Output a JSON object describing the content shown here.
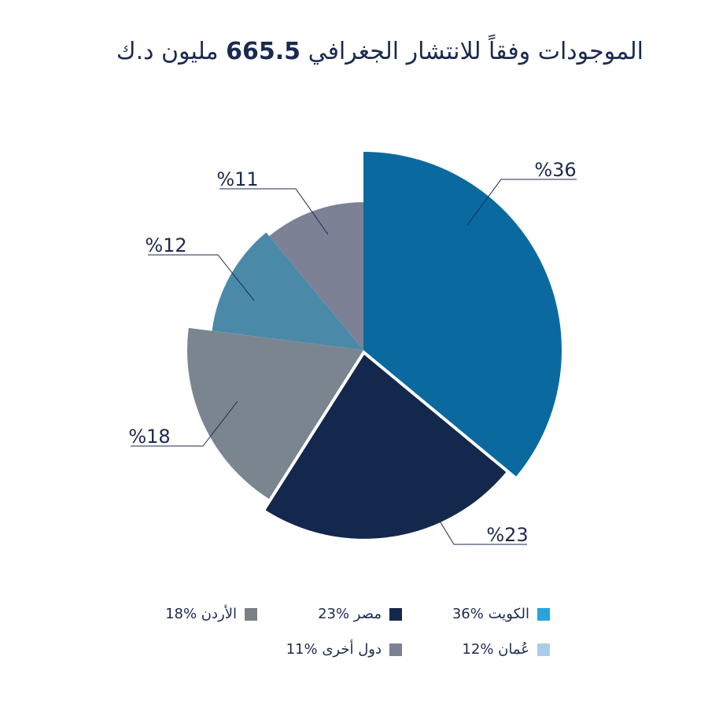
{
  "title": {
    "pre": "الموجودات وفقاً للانتشار الجغرافي ",
    "number": "665.5",
    "post": " مليون د.ك"
  },
  "chart_data": {
    "type": "pie",
    "unit": "%",
    "slices": [
      {
        "name": "الكويت",
        "value": 36,
        "label": "%36",
        "color": "#0a6aa0"
      },
      {
        "name": "مصر",
        "value": 23,
        "label": "%23",
        "color": "#14284e"
      },
      {
        "name": "الأردن",
        "value": 18,
        "label": "%18",
        "color": "#7a8590"
      },
      {
        "name": "عُمان",
        "value": 12,
        "label": "%12",
        "color": "#4a8aa8"
      },
      {
        "name": "دول أخرى",
        "value": 11,
        "label": "%11",
        "color": "#7c8196"
      }
    ]
  },
  "legend": [
    {
      "text": "الكويت %36",
      "color": "#29a3dc"
    },
    {
      "text": "مصر %23",
      "color": "#14284e"
    },
    {
      "text": "الأردن %18",
      "color": "#7a8085"
    },
    {
      "text": "عُمان %12",
      "color": "#a9cde9"
    },
    {
      "text": "دول أخرى %11",
      "color": "#7c8196"
    }
  ]
}
